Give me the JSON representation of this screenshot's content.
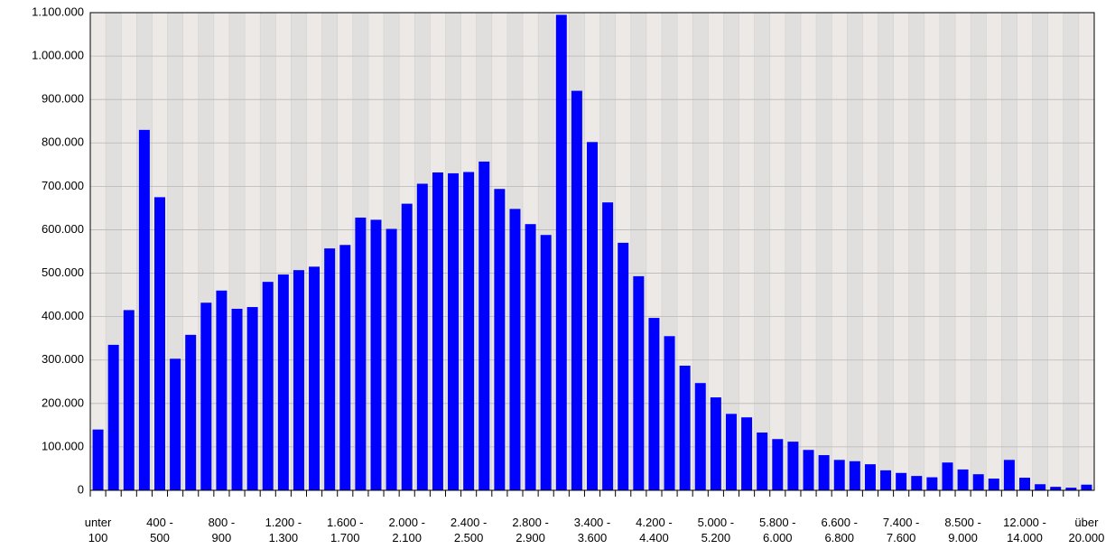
{
  "chart_data": {
    "type": "bar",
    "color": "#0000ff",
    "categories": [
      "unter\n100",
      null,
      null,
      null,
      "400 -\n500",
      null,
      null,
      null,
      "800 -\n900",
      null,
      null,
      null,
      "1.200 -\n1.300",
      null,
      null,
      null,
      "1.600 -\n1.700",
      null,
      null,
      null,
      "2.000 -\n2.100",
      null,
      null,
      null,
      "2.400 -\n2.500",
      null,
      null,
      null,
      "2.800 -\n2.900",
      null,
      null,
      null,
      "3.400 -\n3.600",
      null,
      null,
      null,
      "4.200 -\n4.400",
      null,
      null,
      null,
      "5.000 -\n5.200",
      null,
      null,
      null,
      "5.800 -\n6.000",
      null,
      null,
      null,
      "6.600 -\n6.800",
      null,
      null,
      null,
      "7.400 -\n7.600",
      null,
      null,
      null,
      "8.500 -\n9.000",
      null,
      null,
      null,
      "12.000 -\n14.000",
      null,
      null,
      null,
      "über\n20.000"
    ],
    "values": [
      140000,
      335000,
      415000,
      830000,
      675000,
      303000,
      358000,
      432000,
      460000,
      418000,
      422000,
      480000,
      497000,
      507000,
      515000,
      557000,
      565000,
      628000,
      623000,
      602000,
      660000,
      706000,
      732000,
      730000,
      733000,
      757000,
      694000,
      648000,
      613000,
      588000,
      1095000,
      920000,
      802000,
      663000,
      570000,
      493000,
      397000,
      355000,
      287000,
      247000,
      214000,
      176000,
      168000,
      133000,
      118000,
      112000,
      93000,
      81000,
      70000,
      67000,
      60000,
      46000,
      40000,
      33000,
      30000,
      64000,
      48000,
      37000,
      27000,
      70000,
      29000,
      14000,
      8000,
      6000,
      13000
    ],
    "ylim": [
      0,
      1100000
    ],
    "yticks": [
      0,
      {
        "value": 100000,
        "label": "100.000"
      },
      {
        "value": 200000,
        "label": "200.000"
      },
      {
        "value": 300000,
        "label": "300.000"
      },
      {
        "value": 400000,
        "label": "400.000"
      },
      {
        "value": 500000,
        "label": "500.000"
      },
      {
        "value": 600000,
        "label": "600.000"
      },
      {
        "value": 700000,
        "label": "700.000"
      },
      {
        "value": 800000,
        "label": "800.000"
      },
      {
        "value": 900000,
        "label": "900.000"
      },
      {
        "value": 1000000,
        "label": "1.000.000"
      },
      {
        "value": 1100000,
        "label": "1.100.000"
      }
    ],
    "grid": true
  }
}
